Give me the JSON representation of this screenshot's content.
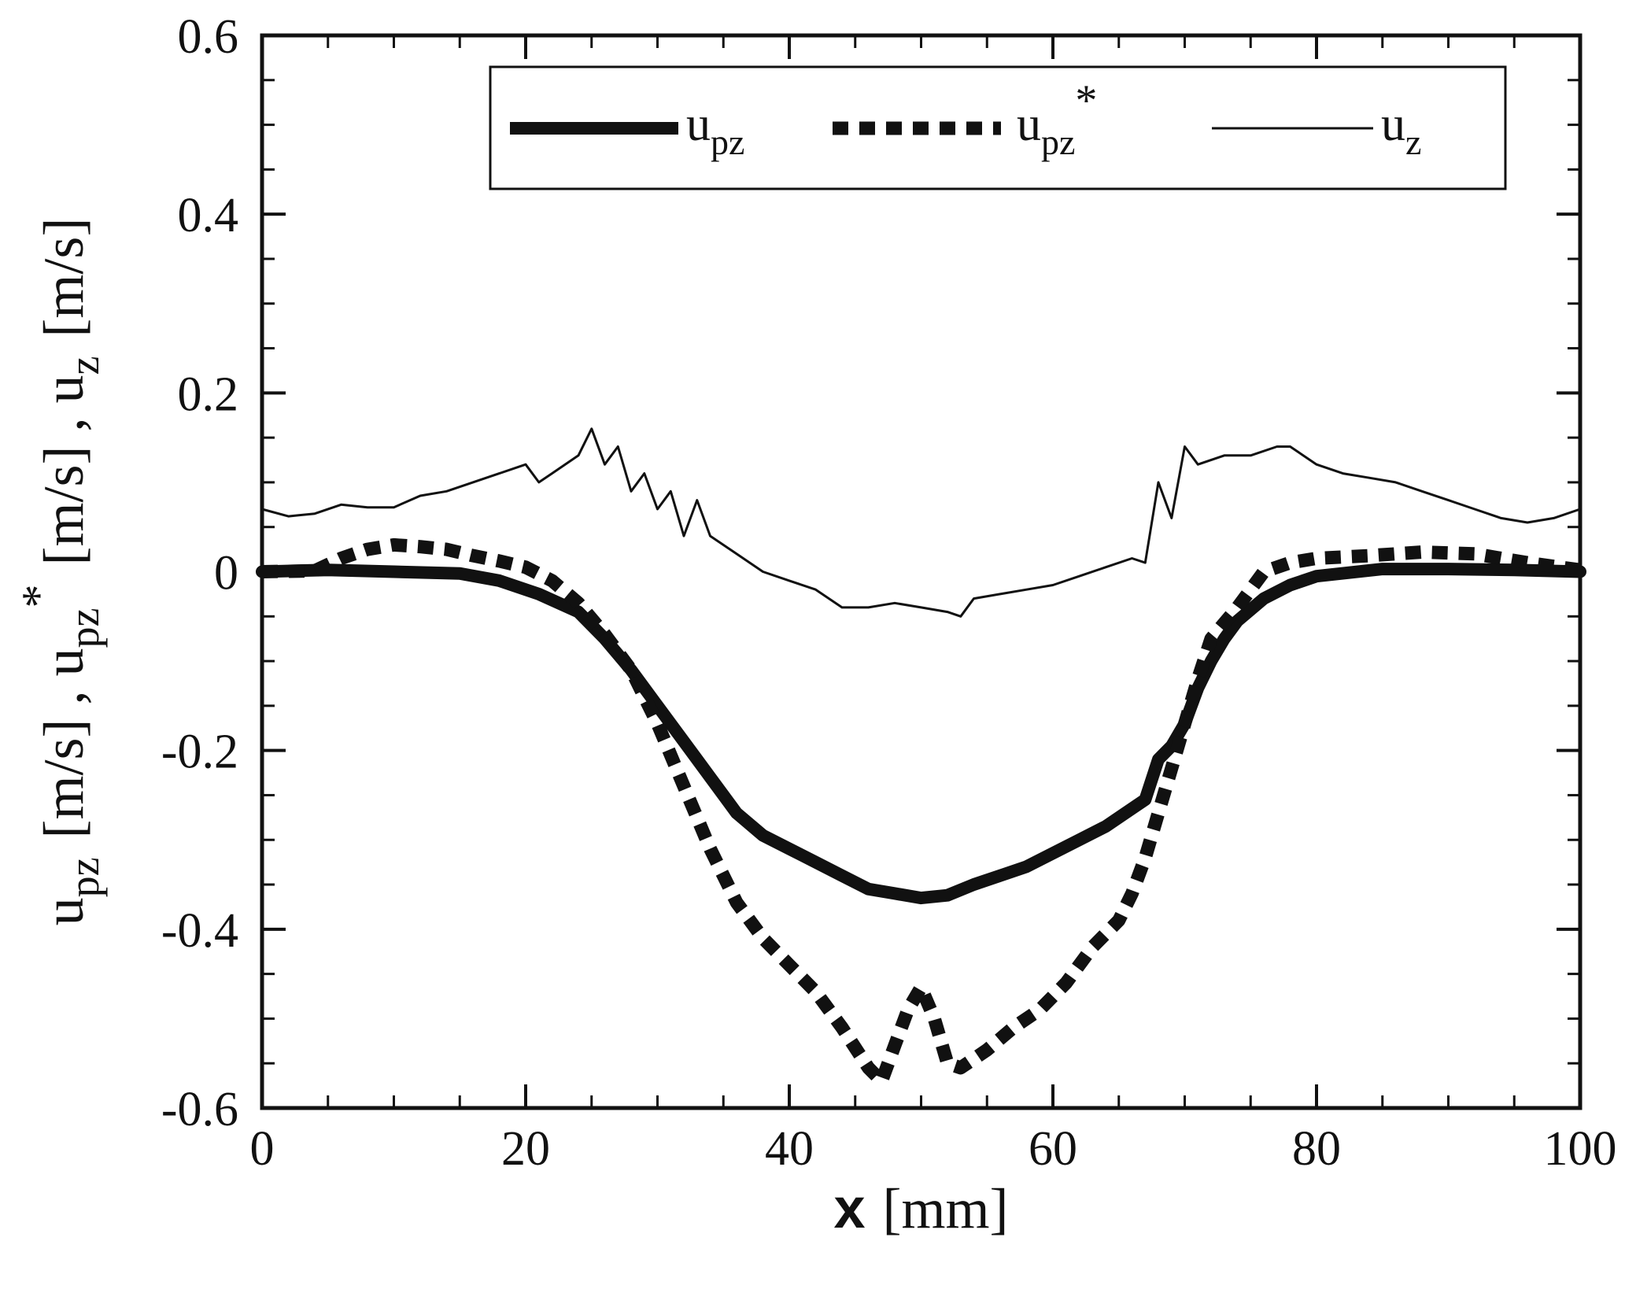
{
  "chart_data": {
    "type": "line",
    "title": "",
    "xlabel": {
      "main": "x",
      "unit": "[mm]"
    },
    "ylabel": {
      "parts": [
        {
          "text": "u",
          "sub": "pz",
          "sup": ""
        },
        {
          "text": "[m/s] , u",
          "sub": "pz",
          "sup": "*"
        },
        {
          "text": "[m/s] , u",
          "sub": "z",
          "sup": ""
        },
        {
          "text": "[m/s]",
          "sub": "",
          "sup": ""
        }
      ]
    },
    "xlim": [
      0,
      100
    ],
    "ylim": [
      -0.6,
      0.6
    ],
    "x_ticks": [
      0,
      20,
      40,
      60,
      80,
      100
    ],
    "x_tick_labels": [
      "0",
      "20",
      "40",
      "60",
      "80",
      "100"
    ],
    "y_ticks": [
      0.6,
      0.4,
      0.2,
      0,
      -0.2,
      -0.4,
      -0.6
    ],
    "y_tick_labels": [
      "0.6",
      "0.4",
      "0.2",
      "0",
      "-0.2",
      "-0.4",
      "-0.6"
    ],
    "grid": false,
    "legend_position": "top-right",
    "legend": [
      {
        "series": "upz",
        "base": "u",
        "sub": "pz",
        "sup": ""
      },
      {
        "series": "upz_star",
        "base": "u",
        "sub": "pz",
        "sup": "*"
      },
      {
        "series": "uz",
        "base": "u",
        "sub": "z",
        "sup": ""
      }
    ],
    "series": [
      {
        "id": "upz",
        "style": "thick-solid",
        "color": "#111111",
        "points": [
          [
            0,
            0
          ],
          [
            5,
            0.002
          ],
          [
            10,
            0
          ],
          [
            15,
            -0.002
          ],
          [
            18,
            -0.01
          ],
          [
            21,
            -0.025
          ],
          [
            24,
            -0.045
          ],
          [
            26,
            -0.075
          ],
          [
            28,
            -0.11
          ],
          [
            30,
            -0.15
          ],
          [
            32,
            -0.19
          ],
          [
            34,
            -0.23
          ],
          [
            36,
            -0.27
          ],
          [
            38,
            -0.295
          ],
          [
            40,
            -0.31
          ],
          [
            42,
            -0.325
          ],
          [
            44,
            -0.34
          ],
          [
            46,
            -0.355
          ],
          [
            48,
            -0.36
          ],
          [
            50,
            -0.365
          ],
          [
            52,
            -0.362
          ],
          [
            54,
            -0.35
          ],
          [
            56,
            -0.34
          ],
          [
            58,
            -0.33
          ],
          [
            60,
            -0.315
          ],
          [
            62,
            -0.3
          ],
          [
            64,
            -0.285
          ],
          [
            66,
            -0.265
          ],
          [
            67,
            -0.255
          ],
          [
            68,
            -0.21
          ],
          [
            69,
            -0.195
          ],
          [
            70,
            -0.17
          ],
          [
            71,
            -0.13
          ],
          [
            72,
            -0.1
          ],
          [
            73,
            -0.075
          ],
          [
            74,
            -0.055
          ],
          [
            76,
            -0.03
          ],
          [
            78,
            -0.015
          ],
          [
            80,
            -0.005
          ],
          [
            85,
            0.003
          ],
          [
            90,
            0.003
          ],
          [
            95,
            0.002
          ],
          [
            100,
            0
          ]
        ]
      },
      {
        "id": "upz_star",
        "style": "thick-dotted",
        "color": "#111111",
        "points": [
          [
            0,
            0
          ],
          [
            4,
            0.001
          ],
          [
            6,
            0.015
          ],
          [
            8,
            0.025
          ],
          [
            10,
            0.03
          ],
          [
            12,
            0.028
          ],
          [
            14,
            0.025
          ],
          [
            16,
            0.018
          ],
          [
            18,
            0.012
          ],
          [
            20,
            0.005
          ],
          [
            22,
            -0.01
          ],
          [
            24,
            -0.035
          ],
          [
            26,
            -0.07
          ],
          [
            28,
            -0.11
          ],
          [
            30,
            -0.17
          ],
          [
            32,
            -0.24
          ],
          [
            34,
            -0.31
          ],
          [
            36,
            -0.37
          ],
          [
            38,
            -0.41
          ],
          [
            40,
            -0.44
          ],
          [
            42,
            -0.47
          ],
          [
            44,
            -0.51
          ],
          [
            46,
            -0.555
          ],
          [
            47,
            -0.57
          ],
          [
            48,
            -0.53
          ],
          [
            49,
            -0.49
          ],
          [
            50,
            -0.465
          ],
          [
            51,
            -0.5
          ],
          [
            52,
            -0.55
          ],
          [
            53,
            -0.555
          ],
          [
            55,
            -0.535
          ],
          [
            57,
            -0.51
          ],
          [
            59,
            -0.49
          ],
          [
            61,
            -0.46
          ],
          [
            63,
            -0.42
          ],
          [
            65,
            -0.39
          ],
          [
            66,
            -0.36
          ],
          [
            67,
            -0.32
          ],
          [
            68,
            -0.27
          ],
          [
            69,
            -0.22
          ],
          [
            70,
            -0.17
          ],
          [
            71,
            -0.12
          ],
          [
            72,
            -0.075
          ],
          [
            74,
            -0.04
          ],
          [
            75,
            -0.02
          ],
          [
            76,
            0
          ],
          [
            78,
            0.01
          ],
          [
            80,
            0.015
          ],
          [
            84,
            0.018
          ],
          [
            88,
            0.022
          ],
          [
            92,
            0.02
          ],
          [
            96,
            0.01
          ],
          [
            100,
            0.002
          ]
        ]
      },
      {
        "id": "uz",
        "style": "thin-solid",
        "color": "#111111",
        "points": [
          [
            0,
            0.07
          ],
          [
            2,
            0.062
          ],
          [
            4,
            0.065
          ],
          [
            6,
            0.075
          ],
          [
            8,
            0.072
          ],
          [
            10,
            0.072
          ],
          [
            12,
            0.085
          ],
          [
            14,
            0.09
          ],
          [
            16,
            0.1
          ],
          [
            18,
            0.11
          ],
          [
            20,
            0.12
          ],
          [
            21,
            0.1
          ],
          [
            22,
            0.11
          ],
          [
            24,
            0.13
          ],
          [
            25,
            0.16
          ],
          [
            26,
            0.12
          ],
          [
            27,
            0.14
          ],
          [
            28,
            0.09
          ],
          [
            29,
            0.11
          ],
          [
            30,
            0.07
          ],
          [
            31,
            0.09
          ],
          [
            32,
            0.04
          ],
          [
            33,
            0.08
          ],
          [
            34,
            0.04
          ],
          [
            36,
            0.02
          ],
          [
            38,
            0.0
          ],
          [
            40,
            -0.01
          ],
          [
            42,
            -0.02
          ],
          [
            44,
            -0.04
          ],
          [
            46,
            -0.04
          ],
          [
            48,
            -0.035
          ],
          [
            50,
            -0.04
          ],
          [
            52,
            -0.045
          ],
          [
            53,
            -0.05
          ],
          [
            54,
            -0.03
          ],
          [
            56,
            -0.025
          ],
          [
            58,
            -0.02
          ],
          [
            60,
            -0.015
          ],
          [
            62,
            -0.005
          ],
          [
            64,
            0.005
          ],
          [
            66,
            0.015
          ],
          [
            67,
            0.01
          ],
          [
            68,
            0.1
          ],
          [
            69,
            0.06
          ],
          [
            70,
            0.14
          ],
          [
            71,
            0.12
          ],
          [
            73,
            0.13
          ],
          [
            75,
            0.13
          ],
          [
            77,
            0.14
          ],
          [
            78,
            0.14
          ],
          [
            80,
            0.12
          ],
          [
            82,
            0.11
          ],
          [
            84,
            0.105
          ],
          [
            86,
            0.1
          ],
          [
            88,
            0.09
          ],
          [
            90,
            0.08
          ],
          [
            92,
            0.07
          ],
          [
            94,
            0.06
          ],
          [
            96,
            0.055
          ],
          [
            98,
            0.06
          ],
          [
            100,
            0.07
          ]
        ]
      }
    ]
  }
}
